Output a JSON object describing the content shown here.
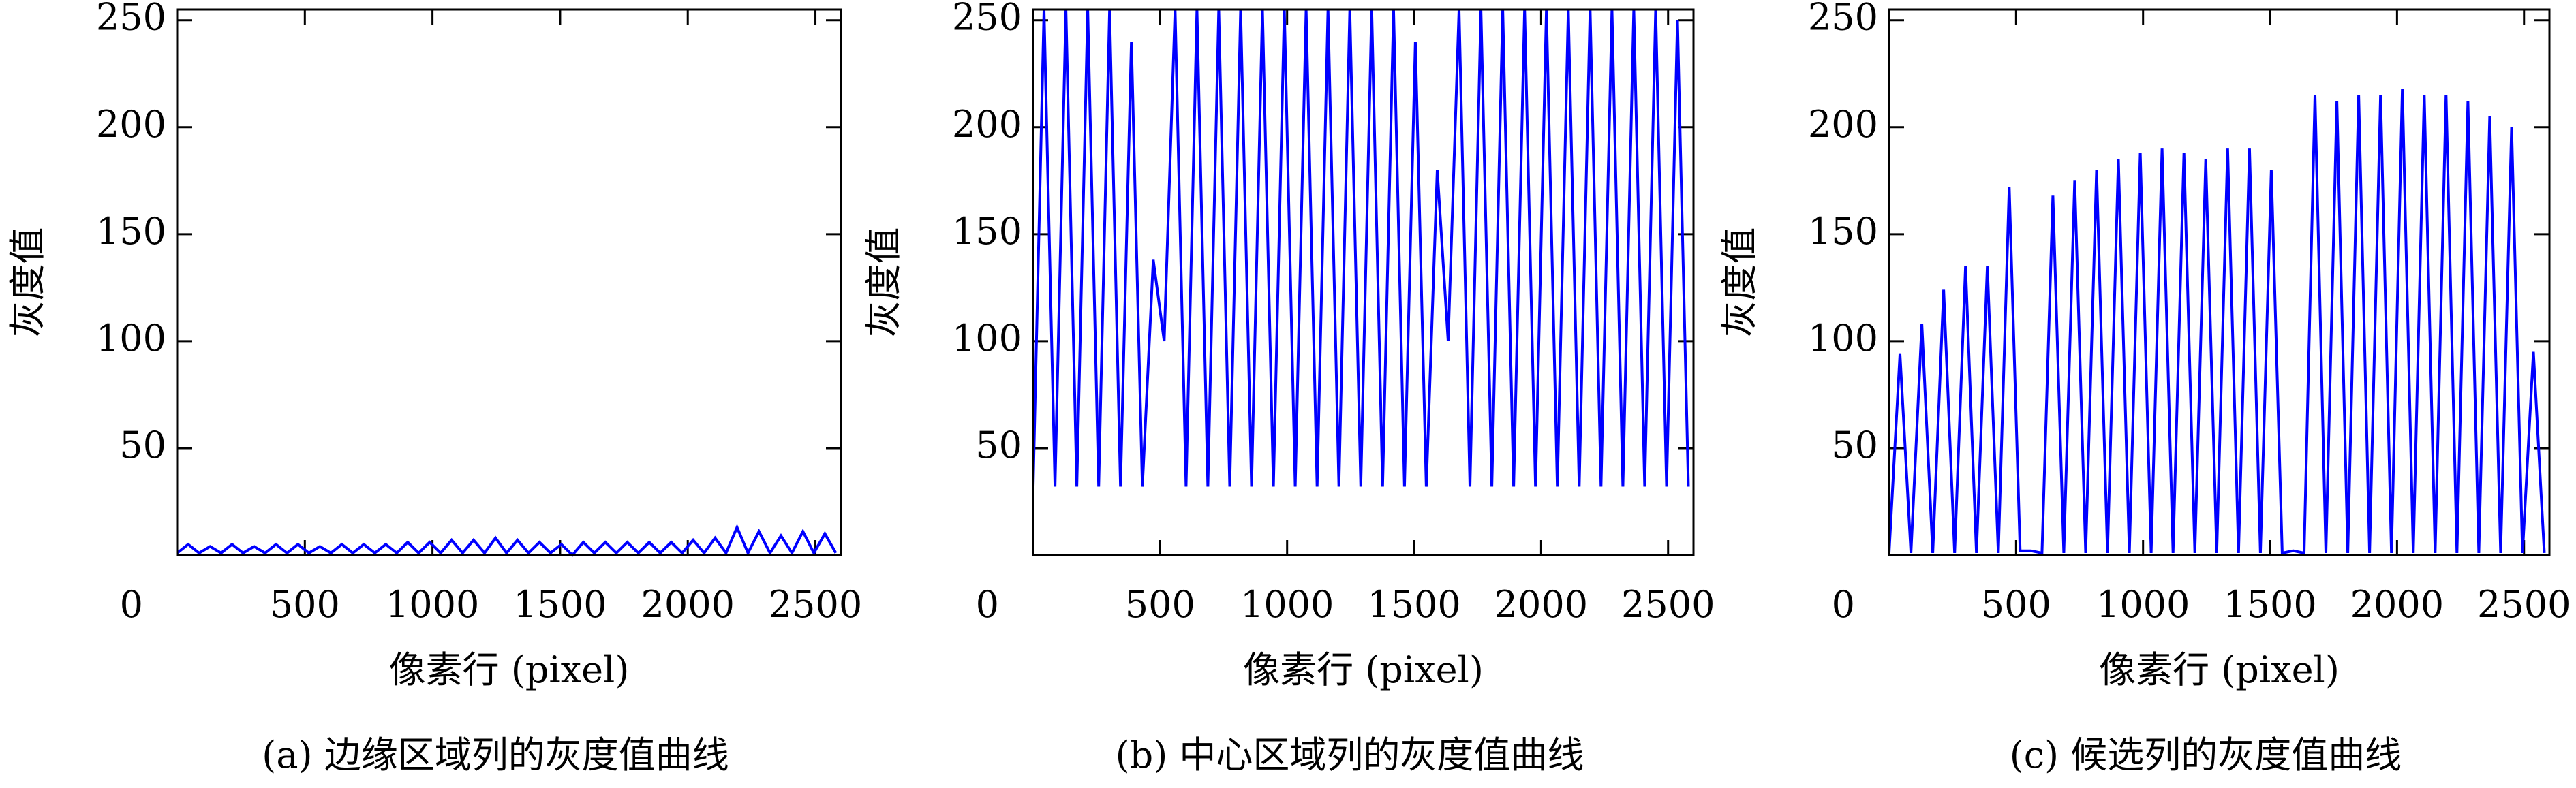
{
  "chart_data": [
    {
      "type": "line",
      "caption": "(a) 边缘区域列的灰度值曲线",
      "xlabel": "像素行 (pixel)",
      "ylabel": "灰度值",
      "xlim": [
        0,
        2600
      ],
      "ylim": [
        0,
        255
      ],
      "xticks": [
        0,
        500,
        1000,
        1500,
        2000,
        2500
      ],
      "yticks": [
        50,
        100,
        150,
        200,
        250
      ],
      "series": [
        {
          "color": "#0000ff",
          "x": [
            0,
            43,
            86,
            129,
            172,
            215,
            258,
            301,
            344,
            387,
            430,
            473,
            516,
            559,
            602,
            645,
            688,
            731,
            774,
            817,
            860,
            903,
            946,
            989,
            1032,
            1075,
            1118,
            1161,
            1204,
            1247,
            1290,
            1333,
            1376,
            1419,
            1462,
            1505,
            1548,
            1591,
            1634,
            1677,
            1720,
            1763,
            1806,
            1849,
            1892,
            1935,
            1978,
            2021,
            2064,
            2107,
            2150,
            2193,
            2236,
            2279,
            2322,
            2365,
            2408,
            2451,
            2494,
            2537,
            2580
          ],
          "values": [
            1,
            5,
            1,
            4,
            1,
            5,
            1,
            4,
            1,
            5,
            1,
            5,
            1,
            4,
            1,
            5,
            1,
            5,
            1,
            5,
            1,
            6,
            1,
            6,
            1,
            7,
            1,
            7,
            1,
            8,
            1,
            7,
            1,
            6,
            1,
            5,
            0,
            6,
            1,
            6,
            1,
            6,
            1,
            6,
            1,
            6,
            1,
            7,
            1,
            8,
            1,
            13,
            1,
            11,
            1,
            9,
            1,
            11,
            1,
            10,
            1
          ]
        }
      ]
    },
    {
      "type": "line",
      "caption": "(b) 中心区域列的灰度值曲线",
      "xlabel": "像素行 (pixel)",
      "ylabel": "灰度值",
      "xlim": [
        0,
        2600
      ],
      "ylim": [
        0,
        255
      ],
      "xticks": [
        0,
        500,
        1000,
        1500,
        2000,
        2500
      ],
      "yticks": [
        50,
        100,
        150,
        200,
        250
      ],
      "series": [
        {
          "color": "#0000ff",
          "x": [
            0,
            43,
            86,
            129,
            172,
            215,
            258,
            301,
            344,
            387,
            430,
            473,
            516,
            559,
            602,
            645,
            688,
            731,
            774,
            817,
            860,
            903,
            946,
            989,
            1032,
            1075,
            1118,
            1161,
            1204,
            1247,
            1290,
            1333,
            1376,
            1419,
            1462,
            1505,
            1548,
            1591,
            1634,
            1677,
            1720,
            1763,
            1806,
            1849,
            1892,
            1935,
            1978,
            2021,
            2064,
            2107,
            2150,
            2193,
            2236,
            2279,
            2322,
            2365,
            2408,
            2451,
            2494,
            2537,
            2580
          ],
          "values": [
            32,
            255,
            32,
            255,
            32,
            255,
            32,
            255,
            32,
            240,
            32,
            138,
            100,
            255,
            32,
            255,
            32,
            255,
            32,
            255,
            32,
            255,
            32,
            255,
            32,
            255,
            32,
            255,
            32,
            255,
            32,
            255,
            32,
            255,
            32,
            240,
            32,
            180,
            100,
            255,
            32,
            255,
            32,
            255,
            32,
            255,
            32,
            255,
            32,
            255,
            32,
            255,
            32,
            255,
            32,
            255,
            32,
            255,
            32,
            250,
            32
          ]
        }
      ]
    },
    {
      "type": "line",
      "caption": "(c) 候选列的灰度值曲线",
      "xlabel": "像素行 (pixel)",
      "ylabel": "灰度值",
      "xlim": [
        0,
        2600
      ],
      "ylim": [
        0,
        255
      ],
      "xticks": [
        0,
        500,
        1000,
        1500,
        2000,
        2500
      ],
      "yticks": [
        50,
        100,
        150,
        200,
        250
      ],
      "series": [
        {
          "color": "#0000ff",
          "x": [
            0,
            43,
            86,
            129,
            172,
            215,
            258,
            301,
            344,
            387,
            430,
            473,
            516,
            559,
            602,
            645,
            688,
            731,
            774,
            817,
            860,
            903,
            946,
            989,
            1032,
            1075,
            1118,
            1161,
            1204,
            1247,
            1290,
            1333,
            1376,
            1419,
            1462,
            1505,
            1548,
            1591,
            1634,
            1677,
            1720,
            1763,
            1806,
            1849,
            1892,
            1935,
            1978,
            2021,
            2064,
            2107,
            2150,
            2193,
            2236,
            2279,
            2322,
            2365,
            2408,
            2451,
            2494,
            2537,
            2580
          ],
          "values": [
            1,
            94,
            1,
            108,
            1,
            124,
            1,
            135,
            1,
            135,
            1,
            172,
            2,
            2,
            1,
            168,
            1,
            175,
            1,
            180,
            1,
            185,
            1,
            188,
            1,
            190,
            1,
            188,
            1,
            185,
            1,
            190,
            1,
            190,
            1,
            180,
            1,
            2,
            1,
            215,
            1,
            212,
            1,
            215,
            1,
            215,
            1,
            218,
            1,
            215,
            1,
            215,
            1,
            212,
            1,
            205,
            1,
            200,
            1,
            95,
            1
          ]
        }
      ]
    }
  ]
}
